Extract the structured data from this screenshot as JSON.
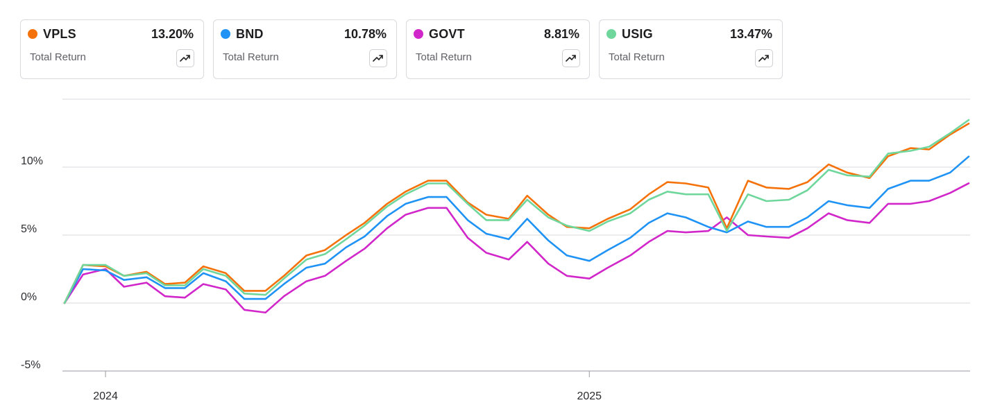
{
  "cards": [
    {
      "ticker": "VPLS",
      "value": "13.20%",
      "label": "Total Return",
      "color": "#f5720a",
      "icon": "trend-up-icon"
    },
    {
      "ticker": "BND",
      "value": "10.78%",
      "label": "Total Return",
      "color": "#1f93f5",
      "icon": "trend-up-icon"
    },
    {
      "ticker": "GOVT",
      "value": "8.81%",
      "label": "Total Return",
      "color": "#d126c9",
      "icon": "trend-up-icon"
    },
    {
      "ticker": "USIG",
      "value": "13.47%",
      "label": "Total Return",
      "color": "#6fd69c",
      "icon": "trend-up-icon"
    }
  ],
  "chart_data": {
    "type": "line",
    "title": "",
    "xlabel": "",
    "ylabel": "",
    "ylim": [
      -5,
      15
    ],
    "y_ticks": [
      "10%",
      "5%",
      "0%",
      "-5%"
    ],
    "y_tick_values": [
      10,
      5,
      0,
      -5
    ],
    "x_ticks": [
      "2024",
      "2025"
    ],
    "x_tick_values": [
      "2024-01-01",
      "2025-01-01"
    ],
    "grid": true,
    "x": [
      "2023-12-01",
      "2023-12-15",
      "2024-01-01",
      "2024-01-15",
      "2024-02-01",
      "2024-02-15",
      "2024-03-01",
      "2024-03-15",
      "2024-04-01",
      "2024-04-15",
      "2024-05-01",
      "2024-05-15",
      "2024-06-01",
      "2024-06-15",
      "2024-07-01",
      "2024-07-15",
      "2024-08-01",
      "2024-08-15",
      "2024-09-01",
      "2024-09-15",
      "2024-10-01",
      "2024-10-15",
      "2024-11-01",
      "2024-11-15",
      "2024-12-01",
      "2024-12-15",
      "2025-01-01",
      "2025-01-15",
      "2025-02-01",
      "2025-02-15",
      "2025-03-01",
      "2025-03-15",
      "2025-04-01",
      "2025-04-15",
      "2025-05-01",
      "2025-05-15",
      "2025-06-01",
      "2025-06-15",
      "2025-07-01",
      "2025-07-15",
      "2025-08-01",
      "2025-08-15",
      "2025-09-01",
      "2025-09-15",
      "2025-10-01",
      "2025-10-15"
    ],
    "series": [
      {
        "name": "VPLS",
        "color": "#f5720a",
        "values": [
          0.0,
          2.8,
          2.7,
          2.0,
          2.3,
          1.4,
          1.5,
          2.7,
          2.2,
          0.9,
          0.9,
          2.0,
          3.5,
          3.9,
          5.0,
          5.9,
          7.3,
          8.2,
          9.0,
          9.0,
          7.4,
          6.5,
          6.2,
          7.9,
          6.5,
          5.6,
          5.5,
          6.2,
          6.9,
          8.0,
          8.9,
          8.8,
          8.5,
          5.5,
          9.0,
          8.5,
          8.4,
          8.9,
          10.2,
          9.6,
          9.2,
          10.8,
          11.4,
          11.3,
          12.4,
          13.2
        ]
      },
      {
        "name": "BND",
        "color": "#1f93f5",
        "values": [
          0.0,
          2.5,
          2.4,
          1.7,
          1.9,
          1.1,
          1.1,
          2.2,
          1.6,
          0.3,
          0.3,
          1.4,
          2.6,
          2.9,
          4.1,
          4.9,
          6.4,
          7.3,
          7.8,
          7.8,
          6.1,
          5.1,
          4.7,
          6.2,
          4.6,
          3.5,
          3.1,
          3.9,
          4.8,
          5.9,
          6.6,
          6.3,
          5.6,
          5.2,
          6.0,
          5.6,
          5.6,
          6.3,
          7.5,
          7.2,
          7.0,
          8.4,
          9.0,
          9.0,
          9.6,
          10.78
        ]
      },
      {
        "name": "GOVT",
        "color": "#d126c9",
        "values": [
          0.0,
          2.1,
          2.5,
          1.2,
          1.5,
          0.5,
          0.4,
          1.4,
          1.0,
          -0.5,
          -0.7,
          0.5,
          1.6,
          2.0,
          3.1,
          4.0,
          5.5,
          6.5,
          7.0,
          7.0,
          4.8,
          3.7,
          3.2,
          4.5,
          2.9,
          2.0,
          1.8,
          2.6,
          3.5,
          4.5,
          5.3,
          5.2,
          5.3,
          6.3,
          5.0,
          4.9,
          4.8,
          5.5,
          6.6,
          6.1,
          5.9,
          7.3,
          7.3,
          7.5,
          8.1,
          8.81
        ]
      },
      {
        "name": "USIG",
        "color": "#6fd69c",
        "values": [
          0.0,
          2.8,
          2.8,
          2.0,
          2.2,
          1.3,
          1.3,
          2.5,
          2.0,
          0.7,
          0.6,
          1.8,
          3.2,
          3.6,
          4.7,
          5.7,
          7.1,
          8.0,
          8.8,
          8.8,
          7.3,
          6.1,
          6.1,
          7.6,
          6.3,
          5.7,
          5.3,
          6.0,
          6.6,
          7.6,
          8.2,
          8.0,
          8.0,
          5.3,
          8.0,
          7.5,
          7.6,
          8.3,
          9.8,
          9.4,
          9.3,
          11.0,
          11.2,
          11.5,
          12.5,
          13.47
        ]
      }
    ]
  }
}
